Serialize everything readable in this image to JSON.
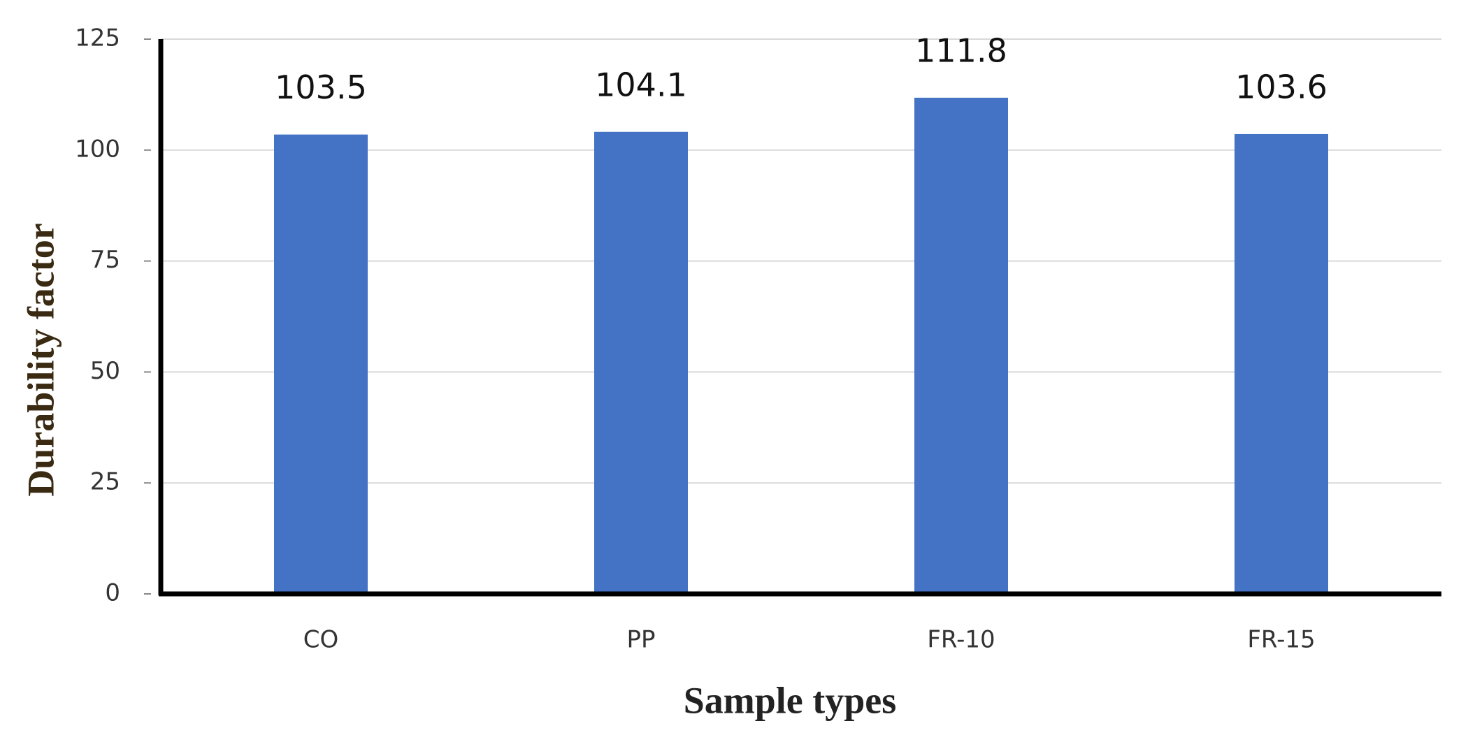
{
  "chart_data": {
    "type": "bar",
    "x_label": "Sample types",
    "y_label": "Durability factor",
    "categories": [
      "CO",
      "PP",
      "FR-10",
      "FR-15"
    ],
    "values": [
      103.5,
      104.1,
      111.8,
      103.6
    ],
    "color": "#4472c4",
    "ylim": [
      0,
      125
    ],
    "yticks": [
      0,
      25,
      50,
      75,
      100,
      125
    ],
    "grid": true
  }
}
